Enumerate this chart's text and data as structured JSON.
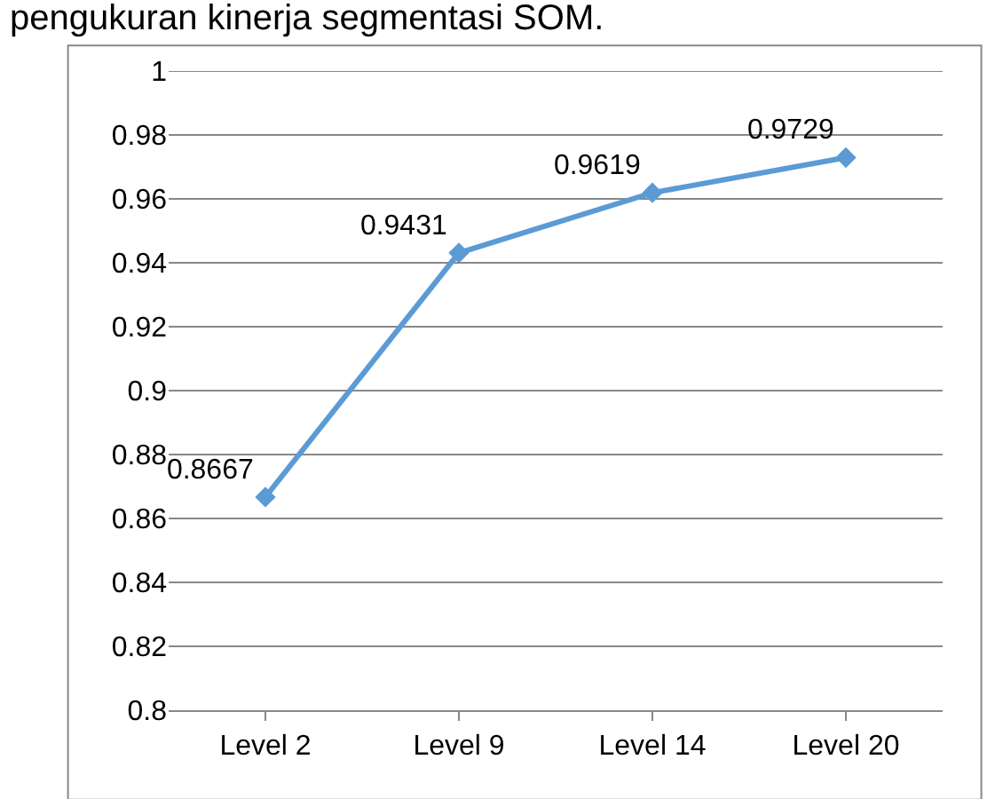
{
  "chart_data": {
    "type": "line",
    "title": "pengukuran kinerja segmentasi SOM.",
    "categories": [
      "Level 2",
      "Level 9",
      "Level 14",
      "Level 20"
    ],
    "series": [
      {
        "color": "#5b9bd5",
        "values": [
          0.8667,
          0.9431,
          0.9619,
          0.9729
        ]
      }
    ],
    "ylim": [
      0.8,
      1
    ],
    "yticks": [
      0.8,
      0.82,
      0.84,
      0.86,
      0.88,
      0.9,
      0.92,
      0.94,
      0.96,
      0.98,
      1
    ],
    "grid": "y",
    "marker": "diamond",
    "line_style": "solid",
    "data_labels": true
  }
}
